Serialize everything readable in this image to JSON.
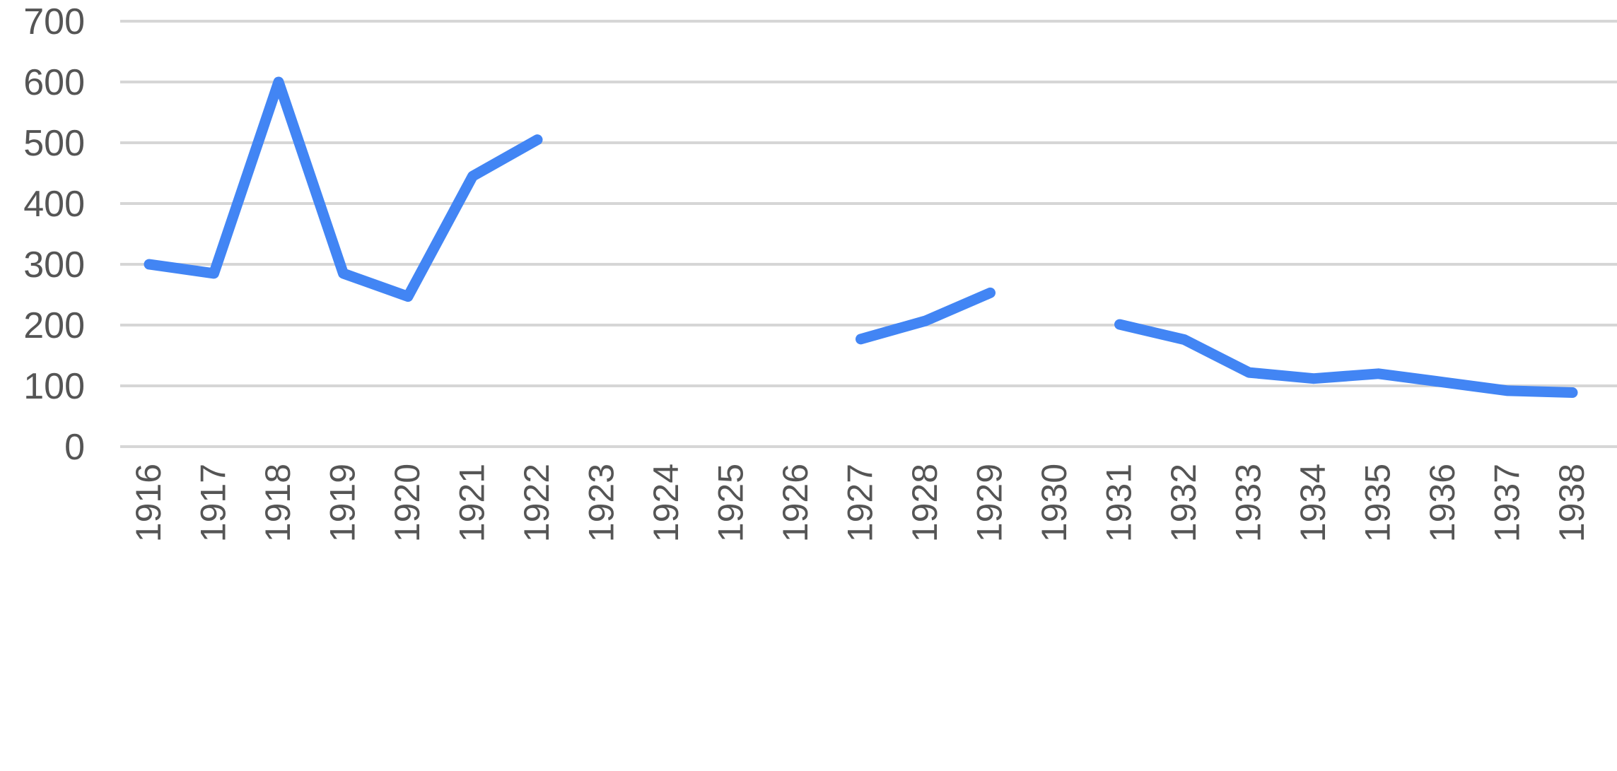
{
  "chart_data": {
    "type": "line",
    "title": "",
    "xlabel": "",
    "ylabel": "",
    "x": [
      "1916",
      "1917",
      "1918",
      "1919",
      "1920",
      "1921",
      "1922",
      "1923",
      "1924",
      "1925",
      "1926",
      "1927",
      "1928",
      "1929",
      "1930",
      "1931",
      "1932",
      "1933",
      "1934",
      "1935",
      "1936",
      "1937",
      "1938"
    ],
    "series": [
      {
        "color": "#4285f4",
        "values": [
          300,
          285,
          600,
          285,
          247,
          445,
          505,
          null,
          null,
          null,
          null,
          177,
          207,
          253,
          null,
          201,
          176,
          122,
          112,
          120,
          106,
          92,
          89
        ]
      }
    ],
    "ylim": [
      0,
      700
    ],
    "yticks": [
      "0",
      "100",
      "200",
      "300",
      "400",
      "500",
      "600",
      "700"
    ],
    "grid": true,
    "legend": "none"
  }
}
